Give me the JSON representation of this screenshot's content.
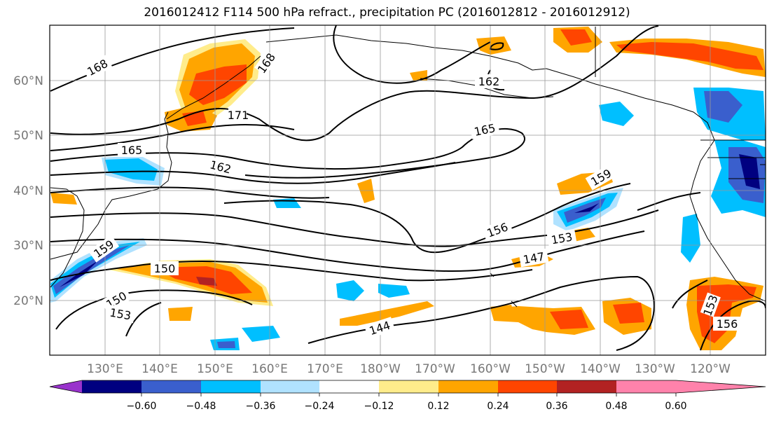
{
  "title": "2016012412 F114 500 hPa refract., precipitation PC (2016012812 - 2016012912)",
  "map": {
    "lat_labels": [
      "60°N",
      "50°N",
      "40°N",
      "30°N",
      "20°N"
    ],
    "lon_labels": [
      "130°E",
      "140°E",
      "150°E",
      "160°E",
      "170°E",
      "180°W",
      "170°W",
      "160°W",
      "150°W",
      "140°W",
      "130°W",
      "120°W"
    ],
    "contour_labels": [
      "168",
      "168",
      "171",
      "162",
      "165",
      "165",
      "162",
      "159",
      "156",
      "153",
      "159",
      "150",
      "147",
      "150",
      "153",
      "144",
      "153",
      "156"
    ]
  },
  "colorbar": {
    "labels": [
      "−0.60",
      "−0.48",
      "−0.36",
      "−0.24",
      "−0.12",
      "0.12",
      "0.24",
      "0.36",
      "0.48",
      "0.60"
    ],
    "colors": [
      "#9933cc",
      "#000080",
      "#3a5fcd",
      "#00bfff",
      "#b0e2ff",
      "#ffffff",
      "#ffec8b",
      "#ffa500",
      "#ff4500",
      "#b22222",
      "#ff82ab"
    ]
  }
}
